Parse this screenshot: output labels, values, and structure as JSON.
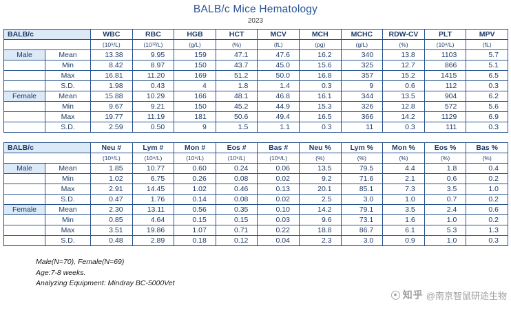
{
  "page": {
    "title": "BALB/c Mice Hematology",
    "subtitle": "2023"
  },
  "tables": [
    {
      "corner_label": "BALB/c",
      "columns": [
        {
          "label": "WBC",
          "unit": "(10⁹/L)"
        },
        {
          "label": "RBC",
          "unit": "(10¹²/L)"
        },
        {
          "label": "HGB",
          "unit": "(g/L)"
        },
        {
          "label": "HCT",
          "unit": "(%)"
        },
        {
          "label": "MCV",
          "unit": "(fL)"
        },
        {
          "label": "MCH",
          "unit": "(pg)"
        },
        {
          "label": "MCHC",
          "unit": "(g/L)"
        },
        {
          "label": "RDW-CV",
          "unit": "(%)"
        },
        {
          "label": "PLT",
          "unit": "(10⁹/L)"
        },
        {
          "label": "MPV",
          "unit": "(fL)"
        }
      ],
      "groups": [
        {
          "name": "Male",
          "rows": [
            {
              "stat": "Mean",
              "values": [
                "13.38",
                "9.95",
                "159",
                "47.1",
                "47.6",
                "16.2",
                "340",
                "13.8",
                "1103",
                "5.7"
              ]
            },
            {
              "stat": "Min",
              "values": [
                "8.42",
                "8.97",
                "150",
                "43.7",
                "45.0",
                "15.6",
                "325",
                "12.7",
                "866",
                "5.1"
              ]
            },
            {
              "stat": "Max",
              "values": [
                "16.81",
                "11.20",
                "169",
                "51.2",
                "50.0",
                "16.8",
                "357",
                "15.2",
                "1415",
                "6.5"
              ]
            },
            {
              "stat": "S.D.",
              "values": [
                "1.98",
                "0.43",
                "4",
                "1.8",
                "1.4",
                "0.3",
                "9",
                "0.6",
                "112",
                "0.3"
              ]
            }
          ]
        },
        {
          "name": "Female",
          "rows": [
            {
              "stat": "Mean",
              "values": [
                "15.88",
                "10.29",
                "166",
                "48.1",
                "46.8",
                "16.1",
                "344",
                "13.5",
                "904",
                "6.2"
              ]
            },
            {
              "stat": "Min",
              "values": [
                "9.67",
                "9.21",
                "150",
                "45.2",
                "44.9",
                "15.3",
                "326",
                "12.8",
                "572",
                "5.6"
              ]
            },
            {
              "stat": "Max",
              "values": [
                "19.77",
                "11.19",
                "181",
                "50.6",
                "49.4",
                "16.5",
                "366",
                "14.2",
                "1129",
                "6.9"
              ]
            },
            {
              "stat": "S.D.",
              "values": [
                "2.59",
                "0.50",
                "9",
                "1.5",
                "1.1",
                "0.3",
                "11",
                "0.3",
                "111",
                "0.3"
              ]
            }
          ]
        }
      ]
    },
    {
      "corner_label": "BALB/c",
      "columns": [
        {
          "label": "Neu #",
          "unit": "(10⁹/L)"
        },
        {
          "label": "Lym #",
          "unit": "(10⁹/L)"
        },
        {
          "label": "Mon #",
          "unit": "(10⁹/L)"
        },
        {
          "label": "Eos #",
          "unit": "(10⁹/L)"
        },
        {
          "label": "Bas #",
          "unit": "(10⁹/L)"
        },
        {
          "label": "Neu %",
          "unit": "(%)"
        },
        {
          "label": "Lym %",
          "unit": "(%)"
        },
        {
          "label": "Mon %",
          "unit": "(%)"
        },
        {
          "label": "Eos %",
          "unit": "(%)"
        },
        {
          "label": "Bas %",
          "unit": "(%)"
        }
      ],
      "groups": [
        {
          "name": "Male",
          "rows": [
            {
              "stat": "Mean",
              "values": [
                "1.85",
                "10.77",
                "0.60",
                "0.24",
                "0.06",
                "13.5",
                "79.5",
                "4.4",
                "1.8",
                "0.4"
              ]
            },
            {
              "stat": "Min",
              "values": [
                "1.02",
                "6.75",
                "0.26",
                "0.08",
                "0.02",
                "9.2",
                "71.6",
                "2.1",
                "0.6",
                "0.2"
              ]
            },
            {
              "stat": "Max",
              "values": [
                "2.91",
                "14.45",
                "1.02",
                "0.46",
                "0.13",
                "20.1",
                "85.1",
                "7.3",
                "3.5",
                "1.0"
              ]
            },
            {
              "stat": "S.D.",
              "values": [
                "0.47",
                "1.76",
                "0.14",
                "0.08",
                "0.02",
                "2.5",
                "3.0",
                "1.0",
                "0.7",
                "0.2"
              ]
            }
          ]
        },
        {
          "name": "Female",
          "rows": [
            {
              "stat": "Mean",
              "values": [
                "2.30",
                "13.11",
                "0.56",
                "0.35",
                "0.10",
                "14.2",
                "79.1",
                "3.5",
                "2.4",
                "0.6"
              ]
            },
            {
              "stat": "Min",
              "values": [
                "0.85",
                "4.64",
                "0.15",
                "0.15",
                "0.03",
                "9.6",
                "73.1",
                "1.6",
                "1.0",
                "0.2"
              ]
            },
            {
              "stat": "Max",
              "values": [
                "3.51",
                "19.86",
                "1.07",
                "0.71",
                "0.22",
                "18.8",
                "86.7",
                "6.1",
                "5.3",
                "1.3"
              ]
            },
            {
              "stat": "S.D.",
              "values": [
                "0.48",
                "2.89",
                "0.18",
                "0.12",
                "0.04",
                "2.3",
                "3.0",
                "0.9",
                "1.0",
                "0.3"
              ]
            }
          ]
        }
      ]
    }
  ],
  "footnotes": [
    "Male(N=70), Female(N=69)",
    "Age:7-8 weeks.",
    "Analyzing Equipment: Mindray BC-5000Vet"
  ],
  "watermark": {
    "brand": "知乎",
    "handle": "@南京智鼠研途生物"
  }
}
